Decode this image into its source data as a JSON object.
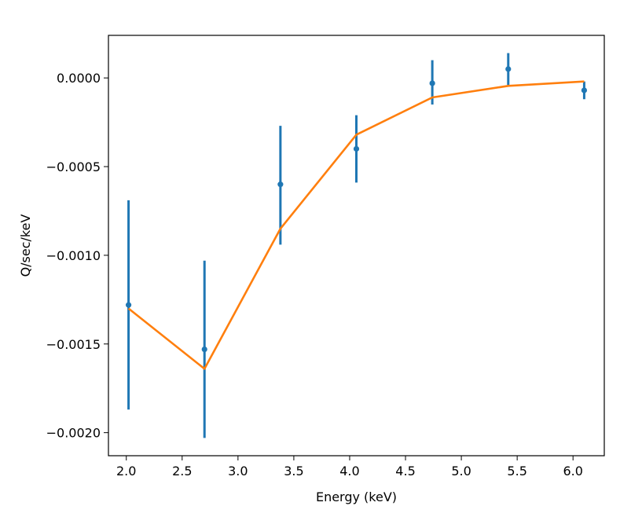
{
  "chart_data": {
    "type": "scatter",
    "title": "",
    "xlabel": "Energy (keV)",
    "ylabel": "Q/sec/keV",
    "xlim": [
      1.84,
      6.28
    ],
    "ylim": [
      -0.00213,
      0.00024
    ],
    "xticks": [
      2.0,
      2.5,
      3.0,
      3.5,
      4.0,
      4.5,
      5.0,
      5.5,
      6.0
    ],
    "xtick_labels": [
      "2.0",
      "2.5",
      "3.0",
      "3.5",
      "4.0",
      "4.5",
      "5.0",
      "5.5",
      "6.0"
    ],
    "yticks": [
      0.0,
      -0.0005,
      -0.001,
      -0.0015,
      -0.002
    ],
    "ytick_labels": [
      "0.0000",
      "−0.0005",
      "−0.0010",
      "−0.0015",
      "−0.0020"
    ],
    "grid": false,
    "series": [
      {
        "kind": "errorbar",
        "color": "#1f77b4",
        "points": [
          {
            "x": 2.02,
            "y": -0.00128,
            "yerr_low": -0.00187,
            "yerr_high": -0.00069
          },
          {
            "x": 2.7,
            "y": -0.00153,
            "yerr_low": -0.00203,
            "yerr_high": -0.00103
          },
          {
            "x": 3.38,
            "y": -0.0006,
            "yerr_low": -0.00094,
            "yerr_high": -0.00027
          },
          {
            "x": 4.06,
            "y": -0.0004,
            "yerr_low": -0.00059,
            "yerr_high": -0.00021
          },
          {
            "x": 4.74,
            "y": -3e-05,
            "yerr_low": -0.00015,
            "yerr_high": 0.0001
          },
          {
            "x": 5.42,
            "y": 5e-05,
            "yerr_low": -4e-05,
            "yerr_high": 0.00014
          },
          {
            "x": 6.1,
            "y": -7e-05,
            "yerr_low": -0.00012,
            "yerr_high": -2e-05
          }
        ]
      },
      {
        "kind": "line",
        "color": "#ff7f0e",
        "x": [
          2.02,
          2.7,
          3.38,
          4.06,
          4.74,
          5.42,
          6.1
        ],
        "y": [
          -0.0013,
          -0.00164,
          -0.00085,
          -0.00032,
          -0.00011,
          -4.5e-05,
          -2e-05
        ]
      }
    ]
  }
}
